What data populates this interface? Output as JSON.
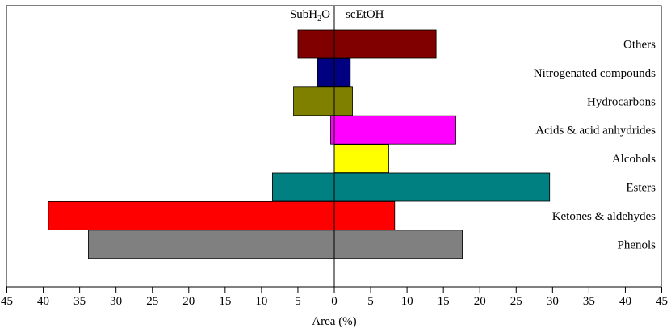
{
  "chart_data": {
    "type": "bar",
    "orientation": "horizontal",
    "layout": "diverging",
    "xlabel": "Area (%)",
    "xlim": [
      -45,
      45
    ],
    "xticks": [
      -45,
      -40,
      -35,
      -30,
      -25,
      -20,
      -15,
      -10,
      -5,
      0,
      5,
      10,
      15,
      20,
      25,
      30,
      35,
      40,
      45
    ],
    "xtick_labels": [
      "45",
      "40",
      "35",
      "30",
      "25",
      "20",
      "15",
      "10",
      "5",
      "0",
      "5",
      "10",
      "15",
      "20",
      "25",
      "30",
      "35",
      "40",
      "45"
    ],
    "left_header": {
      "main": "SubH",
      "subscript": "2",
      "tail": "O"
    },
    "right_header": "scEtOH",
    "categories": [
      "Others",
      "Nitrogenated compounds",
      "Hydrocarbons",
      "Acids & acid anhydrides",
      "Alcohols",
      "Esters",
      "Ketones & aldehydes",
      "Phenols"
    ],
    "colors": [
      "#800000",
      "#000080",
      "#808000",
      "#ff00ff",
      "#ffff00",
      "#008080",
      "#ff0000",
      "#808080"
    ],
    "series": [
      {
        "values": [
          5.0,
          2.3,
          5.6,
          0.5,
          0.0,
          8.5,
          39.3,
          33.8
        ]
      },
      {
        "values": [
          14.0,
          2.2,
          2.5,
          16.7,
          7.5,
          29.6,
          8.3,
          17.6
        ]
      }
    ],
    "grid": false,
    "legend": "none"
  }
}
